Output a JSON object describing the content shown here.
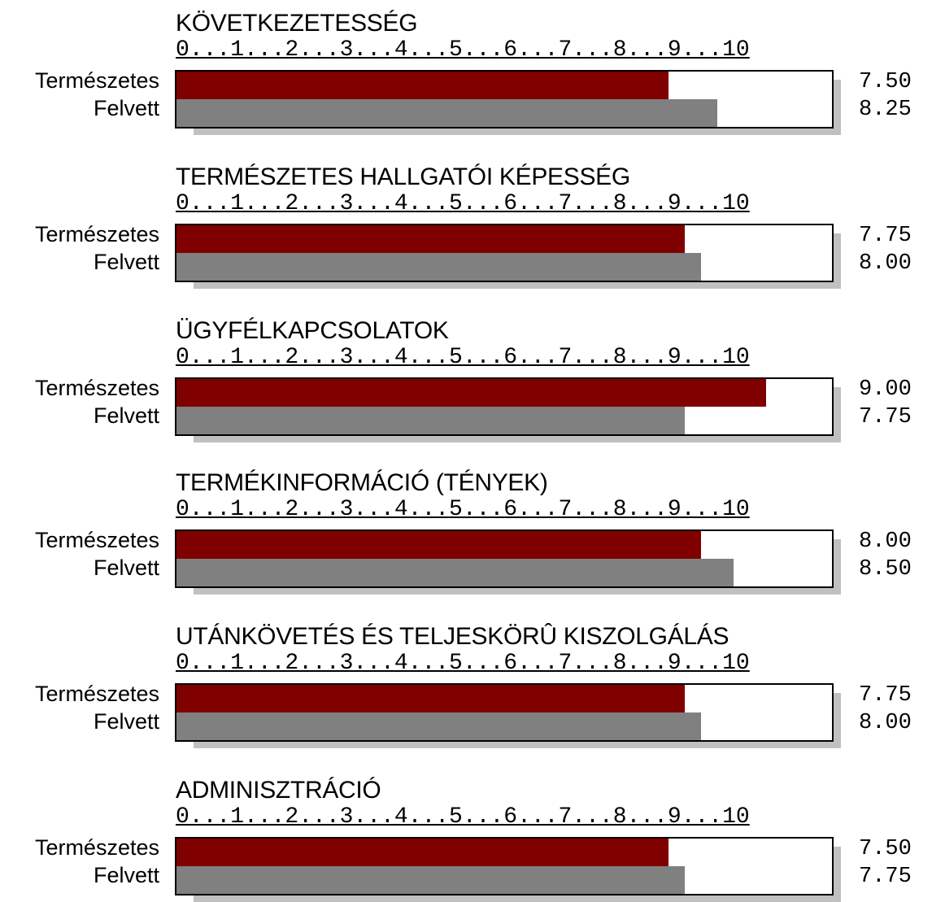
{
  "colors": {
    "series1": "#800000",
    "series2": "#808080"
  },
  "scale_text": "0...1...2...3...4...5...6...7...8...9...10",
  "chart_data": {
    "type": "bar",
    "orientation": "horizontal",
    "xlim": [
      0,
      10
    ],
    "series_names": [
      "Természetes",
      "Felvett"
    ],
    "panels": [
      {
        "title": "KÖVETKEZETESSÉG",
        "labels": [
          "7.50",
          "8.25"
        ],
        "values": [
          7.5,
          8.25
        ]
      },
      {
        "title": "TERMÉSZETES HALLGATÓI KÉPESSÉG",
        "labels": [
          "7.75",
          "8.00"
        ],
        "values": [
          7.75,
          8.0
        ]
      },
      {
        "title": "ÜGYFÉLKAPCSOLATOK",
        "labels": [
          "9.00",
          "7.75"
        ],
        "values": [
          9.0,
          7.75
        ]
      },
      {
        "title": "TERMÉKINFORMÁCIÓ (TÉNYEK)",
        "labels": [
          "8.00",
          "8.50"
        ],
        "values": [
          8.0,
          8.5
        ]
      },
      {
        "title": "UTÁNKÖVETÉS ÉS TELJESKÖRÛ KISZOLGÁLÁS",
        "labels": [
          "7.75",
          "8.00"
        ],
        "values": [
          7.75,
          8.0
        ]
      },
      {
        "title": "ADMINISZTRÁCIÓ",
        "labels": [
          "7.50",
          "7.75"
        ],
        "values": [
          7.5,
          7.75
        ]
      }
    ]
  }
}
